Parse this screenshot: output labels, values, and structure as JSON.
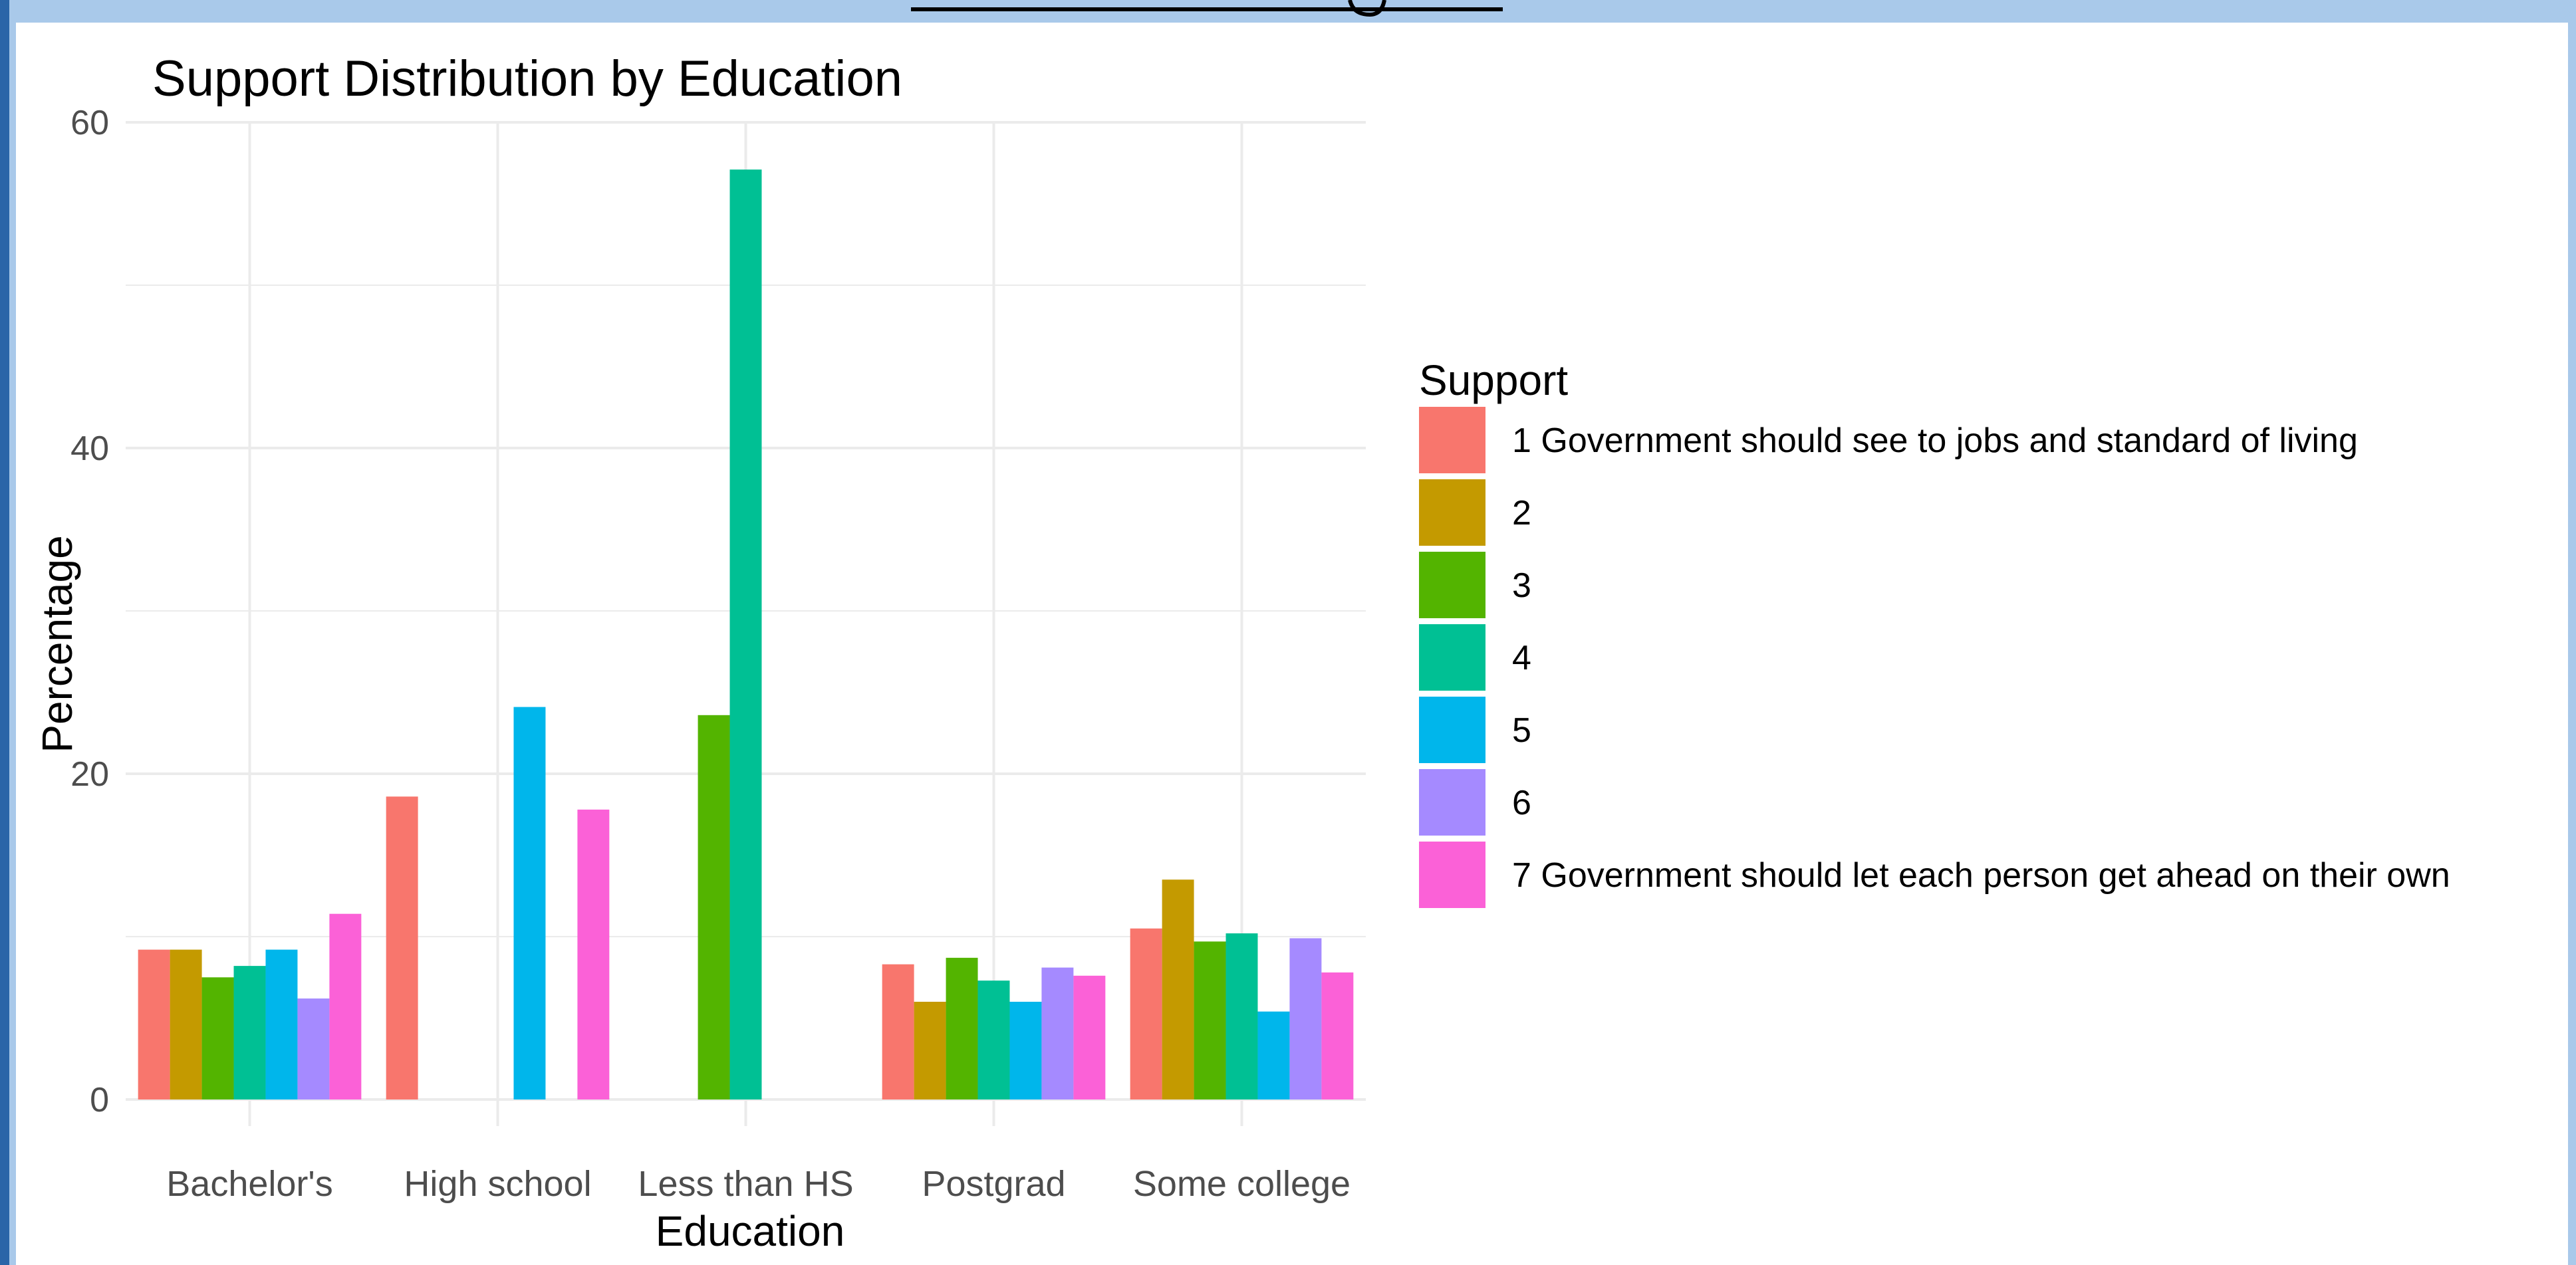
{
  "chart_data": {
    "type": "bar",
    "title": "Support Distribution by Education",
    "xlabel": "Education",
    "ylabel": "Percentage",
    "ylim": [
      0,
      60
    ],
    "yticks": [
      0,
      20,
      40,
      60
    ],
    "grid": true,
    "legend_position": "right",
    "legend_title": "Support",
    "categories": [
      "Bachelor's",
      "High school",
      "Less than HS",
      "Postgrad",
      "Some college"
    ],
    "series": [
      {
        "name": "1 Government should see to jobs and standard of living",
        "color": "#F8766D",
        "values": [
          9.2,
          18.6,
          0,
          8.3,
          10.5
        ]
      },
      {
        "name": "2",
        "color": "#C49A00",
        "values": [
          9.2,
          0,
          0,
          6.0,
          13.5
        ]
      },
      {
        "name": "3",
        "color": "#53B400",
        "values": [
          7.5,
          0,
          23.6,
          8.7,
          9.7
        ]
      },
      {
        "name": "4",
        "color": "#00C094",
        "values": [
          8.2,
          0,
          57.1,
          7.3,
          10.2
        ]
      },
      {
        "name": "5",
        "color": "#00B6EB",
        "values": [
          9.2,
          24.1,
          0,
          6.0,
          5.4
        ]
      },
      {
        "name": "6",
        "color": "#A58AFF",
        "values": [
          6.2,
          0,
          0,
          8.1,
          9.9
        ]
      },
      {
        "name": "7 Government should let each person get ahead on their own",
        "color": "#FB61D7",
        "values": [
          11.4,
          17.8,
          0,
          7.6,
          7.8
        ]
      }
    ],
    "postgrad_series_6_value_note": null
  },
  "colors": {
    "frame_background": "#a9c9ea",
    "frame_edge": "#2a65a8",
    "panel_background": "#ffffff",
    "gridline": "#ebebeb",
    "axis_text": "#4d4d4d",
    "title_text": "#000000"
  }
}
